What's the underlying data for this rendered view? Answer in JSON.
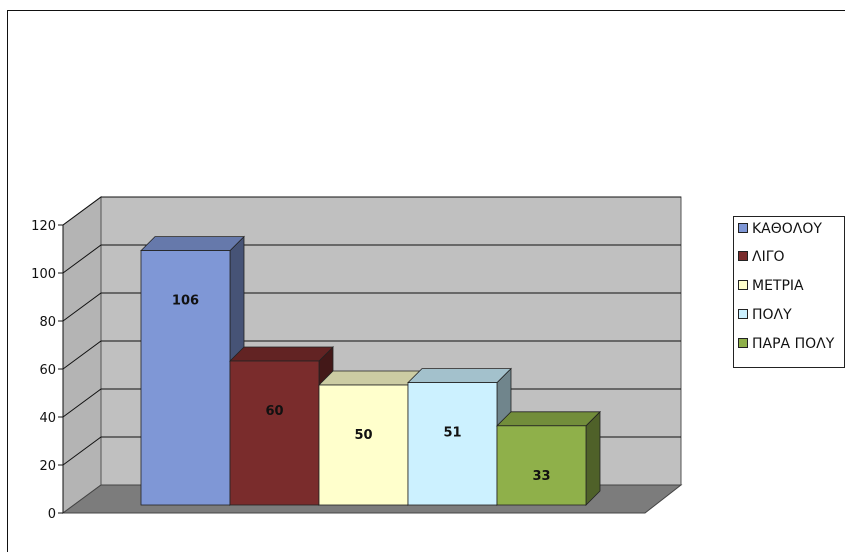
{
  "chart_data": {
    "type": "bar",
    "style": "3d-column",
    "categories": [
      "ΚΑΘΟΛΟΥ",
      "ΛΙΓΟ",
      "ΜΕΤΡΙΑ",
      "ΠΟΛΥ",
      "ΠΑΡΑ ΠΟΛΥ"
    ],
    "values": [
      106,
      60,
      50,
      51,
      33
    ],
    "data_labels": [
      "106",
      "60",
      "50",
      "51",
      "33"
    ],
    "colors": [
      "#7f97d6",
      "#7a2c2c",
      "#ffffcc",
      "#ccf1ff",
      "#8fb04a"
    ],
    "y_ticks": [
      "0",
      "20",
      "40",
      "60",
      "80",
      "100",
      "120"
    ],
    "ylim": [
      0,
      120
    ],
    "grid": true,
    "legend_position": "right",
    "title": "",
    "xlabel": "",
    "ylabel": ""
  },
  "legend": {
    "items": [
      {
        "label": "ΚΑΘΟΛΟΥ"
      },
      {
        "label": "ΛΙΓΟ"
      },
      {
        "label": "ΜΕΤΡΙΑ"
      },
      {
        "label": "ΠΟΛΥ"
      },
      {
        "label": "ΠΑΡΑ ΠΟΛΥ"
      }
    ]
  }
}
